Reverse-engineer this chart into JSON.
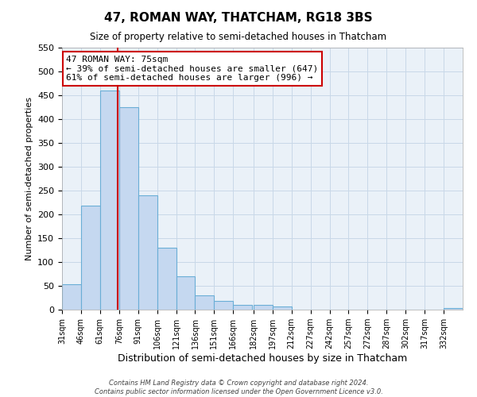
{
  "title": "47, ROMAN WAY, THATCHAM, RG18 3BS",
  "subtitle": "Size of property relative to semi-detached houses in Thatcham",
  "xlabel": "Distribution of semi-detached houses by size in Thatcham",
  "ylabel": "Number of semi-detached properties",
  "bin_labels": [
    "31sqm",
    "46sqm",
    "61sqm",
    "76sqm",
    "91sqm",
    "106sqm",
    "121sqm",
    "136sqm",
    "151sqm",
    "166sqm",
    "182sqm",
    "197sqm",
    "212sqm",
    "227sqm",
    "242sqm",
    "257sqm",
    "272sqm",
    "287sqm",
    "302sqm",
    "317sqm",
    "332sqm"
  ],
  "bin_left_edges": [
    31,
    46,
    61,
    76,
    91,
    106,
    121,
    136,
    151,
    166,
    182,
    197,
    212,
    227,
    242,
    257,
    272,
    287,
    302,
    317,
    332
  ],
  "bin_width": 15,
  "bar_heights": [
    53,
    218,
    460,
    425,
    240,
    130,
    70,
    30,
    18,
    10,
    10,
    6,
    0,
    0,
    0,
    0,
    0,
    0,
    0,
    0,
    3
  ],
  "bar_color": "#c5d8f0",
  "bar_edgecolor": "#6aaed6",
  "property_value": 75,
  "vline_color": "#cc0000",
  "annotation_title": "47 ROMAN WAY: 75sqm",
  "annotation_line1": "← 39% of semi-detached houses are smaller (647)",
  "annotation_line2": "61% of semi-detached houses are larger (996) →",
  "annotation_box_color": "#ffffff",
  "annotation_box_edgecolor": "#cc0000",
  "ylim": [
    0,
    550
  ],
  "yticks": [
    0,
    50,
    100,
    150,
    200,
    250,
    300,
    350,
    400,
    450,
    500,
    550
  ],
  "background_color": "#ffffff",
  "grid_color": "#c8d8e8",
  "footer_line1": "Contains HM Land Registry data © Crown copyright and database right 2024.",
  "footer_line2": "Contains public sector information licensed under the Open Government Licence v3.0."
}
